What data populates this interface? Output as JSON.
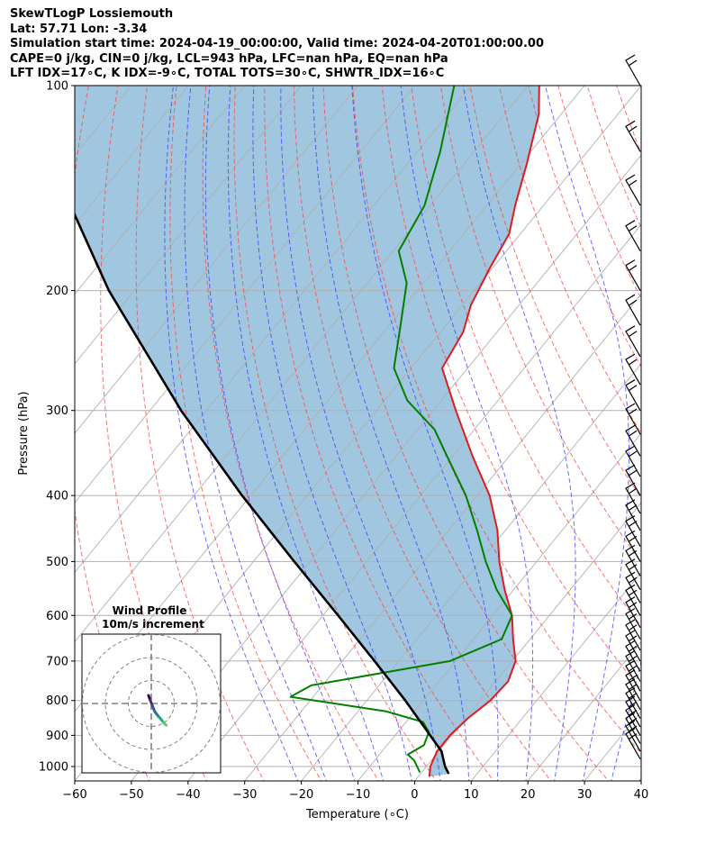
{
  "header": {
    "line1": "SkewTLogP Lossiemouth",
    "line2": "Lat: 57.71   Lon: -3.34",
    "line3": "Simulation start time: 2024-04-19_00:00:00, Valid time: 2024-04-20T01:00:00.00",
    "line4": "CAPE=0 j/kg, CIN=0 j/kg, LCL=943 hPa, LFC=nan hPa, EQ=nan hPa",
    "line5": "LFT IDX=17∘C, K IDX=-9∘C, TOTAL TOTS=30∘C, SHWTR_IDX=16∘C"
  },
  "chart_data": {
    "type": "line",
    "xlabel": "Temperature (∘C)",
    "ylabel": "Pressure (hPa)",
    "xlim": [
      -60,
      40
    ],
    "ylim": [
      1050,
      100
    ],
    "y_scale": "log",
    "skew": "skew-T",
    "x_ticks": [
      "−60",
      "−50",
      "−40",
      "−30",
      "−20",
      "−10",
      "0",
      "10",
      "20",
      "30",
      "40"
    ],
    "y_ticks": [
      "100",
      "200",
      "300",
      "400",
      "500",
      "600",
      "700",
      "800",
      "900",
      "1000"
    ],
    "grid": true,
    "series": [
      {
        "key": "temperature",
        "color": "#e31a1c",
        "points": [
          [
            1035,
            2
          ],
          [
            1000,
            0.7
          ],
          [
            950,
            -0.3
          ],
          [
            900,
            -0.3
          ],
          [
            850,
            0.4
          ],
          [
            800,
            1.8
          ],
          [
            750,
            2.2
          ],
          [
            700,
            0.6
          ],
          [
            650,
            -3.0
          ],
          [
            600,
            -6.6
          ],
          [
            550,
            -11.6
          ],
          [
            500,
            -16.6
          ],
          [
            450,
            -21.4
          ],
          [
            400,
            -27.8
          ],
          [
            350,
            -36.5
          ],
          [
            300,
            -46.0
          ],
          [
            260,
            -54.5
          ],
          [
            230,
            -56.0
          ],
          [
            210,
            -58.5
          ],
          [
            185,
            -60.5
          ],
          [
            165,
            -62.0
          ],
          [
            150,
            -65.0
          ],
          [
            130,
            -69.0
          ],
          [
            110,
            -74.0
          ],
          [
            100,
            -78.0
          ]
        ]
      },
      {
        "key": "dewpoint",
        "color": "#008000",
        "points": [
          [
            1020,
            -0.3
          ],
          [
            980,
            -3.0
          ],
          [
            960,
            -5.0
          ],
          [
            930,
            -3.5
          ],
          [
            890,
            -4.5
          ],
          [
            860,
            -7.0
          ],
          [
            830,
            -15.0
          ],
          [
            790,
            -34.0
          ],
          [
            760,
            -32.0
          ],
          [
            700,
            -11.0
          ],
          [
            650,
            -5.0
          ],
          [
            600,
            -6.6
          ],
          [
            550,
            -13.0
          ],
          [
            500,
            -19.0
          ],
          [
            450,
            -25.0
          ],
          [
            400,
            -32.0
          ],
          [
            350,
            -41.0
          ],
          [
            320,
            -47.0
          ],
          [
            290,
            -56.0
          ],
          [
            260,
            -63.0
          ],
          [
            225,
            -68.0
          ],
          [
            195,
            -73.0
          ],
          [
            175,
            -79.0
          ],
          [
            150,
            -81.0
          ],
          [
            125,
            -86.0
          ],
          [
            100,
            -93.0
          ]
        ]
      },
      {
        "key": "parcel",
        "color": "#000000",
        "points": [
          [
            1025,
            5.0
          ],
          [
            1000,
            3.3
          ],
          [
            950,
            0.5
          ],
          [
            900,
            -3.8
          ],
          [
            800,
            -13.2
          ],
          [
            700,
            -24.3
          ],
          [
            600,
            -37.3
          ],
          [
            500,
            -52.8
          ],
          [
            400,
            -71.5
          ],
          [
            300,
            -94.5
          ],
          [
            200,
            -124.5
          ],
          [
            150,
            -143.5
          ],
          [
            100,
            -167.0
          ]
        ]
      }
    ],
    "wind_barbs_label": "",
    "hodograph": {
      "title": "Wind Profile",
      "subtitle": "10m/s increment",
      "rings_ms": [
        10,
        20,
        30
      ],
      "points": [
        [
          -1.2,
          3.5
        ],
        [
          -0.5,
          1.5
        ],
        [
          0.5,
          -1.0
        ],
        [
          1.5,
          -3.5
        ],
        [
          3.0,
          -5.5
        ],
        [
          4.2,
          -6.8
        ],
        [
          5.5,
          -8.5
        ],
        [
          6.5,
          -9.5
        ]
      ]
    }
  }
}
